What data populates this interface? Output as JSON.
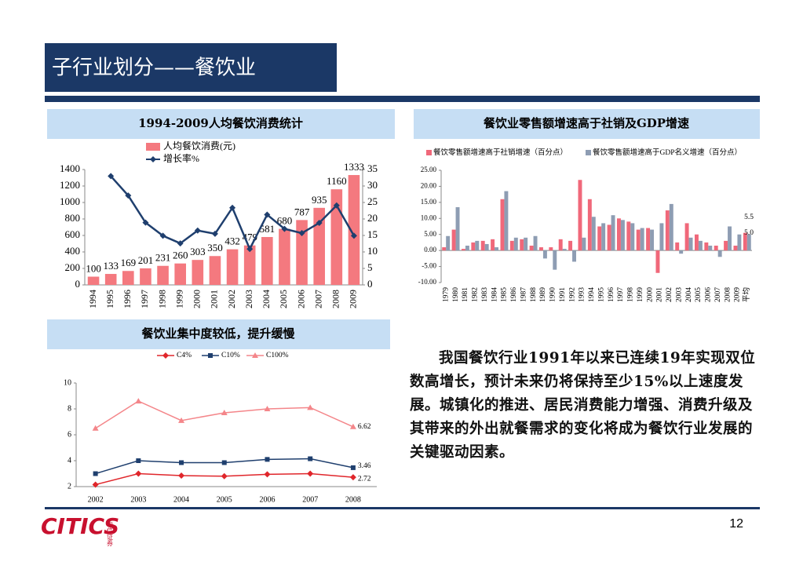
{
  "header": {
    "title": "子行业划分——餐饮业"
  },
  "chart_data": [
    {
      "type": "combo",
      "title": "1994-2009人均餐饮消费统计",
      "categories": [
        "1994",
        "1995",
        "1996",
        "1997",
        "1998",
        "1999",
        "2000",
        "2001",
        "2002",
        "2003",
        "2004",
        "2005",
        "2006",
        "2007",
        "2008",
        "2009"
      ],
      "series": [
        {
          "name": "人均餐饮消费(元)",
          "type": "bar",
          "color": "#f4797f",
          "values": [
            100,
            133,
            169,
            201,
            231,
            260,
            303,
            350,
            432,
            479,
            581,
            680,
            787,
            935,
            1160,
            1333
          ]
        },
        {
          "name": "增长率%",
          "type": "line",
          "axis": "y2",
          "color": "#1f3f6e",
          "values": [
            null,
            33,
            27.1,
            18.9,
            14.9,
            12.6,
            16.5,
            15.5,
            23.4,
            10.9,
            21.3,
            17.0,
            15.7,
            18.8,
            24.1,
            14.9
          ]
        }
      ],
      "ylim": [
        0,
        1400
      ],
      "yticks": [
        0,
        200,
        400,
        600,
        800,
        1000,
        1200,
        1400
      ],
      "y2lim": [
        0,
        35
      ],
      "y2ticks": [
        0,
        5,
        10,
        15,
        20,
        25,
        30,
        35
      ],
      "data_labels": true
    },
    {
      "type": "bar",
      "title": "餐饮业零售额增速高于社销及GDP增速",
      "categories": [
        "1979",
        "1980",
        "1981",
        "1982",
        "1983",
        "1984",
        "1985",
        "1986",
        "1987",
        "1988",
        "1989",
        "1990",
        "1991",
        "1992",
        "1993",
        "1994",
        "1995",
        "1996",
        "1997",
        "1998",
        "1999",
        "2000",
        "2001",
        "2002",
        "2003",
        "2004",
        "2005",
        "2006",
        "2007",
        "2008",
        "2009",
        "平均"
      ],
      "series": [
        {
          "name": "餐饮零售额增速高于社销增速（百分点）",
          "color": "#f0687a",
          "values": [
            1,
            6.5,
            0.5,
            2.5,
            3,
            3.5,
            16,
            3,
            3.5,
            1.5,
            1,
            1,
            3.5,
            3,
            22,
            16,
            7.5,
            8,
            10,
            9,
            6.5,
            7,
            -7,
            12.5,
            2.5,
            8.5,
            5,
            2.5,
            1.5,
            3,
            1.5,
            5.5
          ],
          "value_labels": [
            null,
            null,
            null,
            null,
            null,
            null,
            null,
            null,
            null,
            null,
            null,
            null,
            null,
            null,
            null,
            null,
            null,
            null,
            null,
            null,
            null,
            null,
            null,
            null,
            null,
            null,
            null,
            null,
            null,
            null,
            null,
            "5.5"
          ]
        },
        {
          "name": "餐饮零售额增速高于GDP名义增速（百分点）",
          "color": "#8e9db3",
          "values": [
            4.5,
            13.5,
            1.5,
            3,
            2,
            1,
            18.5,
            4,
            4,
            4.5,
            -2.5,
            -6,
            0.5,
            -3.5,
            4,
            10.5,
            8.5,
            11,
            9.5,
            8.5,
            7,
            6.5,
            8.5,
            14.5,
            -1,
            4,
            3,
            1.5,
            -2,
            7.5,
            5,
            5.0
          ],
          "value_labels": [
            null,
            null,
            null,
            null,
            null,
            null,
            null,
            null,
            null,
            null,
            null,
            null,
            null,
            null,
            null,
            null,
            null,
            null,
            null,
            null,
            null,
            null,
            null,
            null,
            null,
            null,
            null,
            null,
            null,
            null,
            null,
            "5.0"
          ]
        }
      ],
      "ylim": [
        -10,
        25
      ],
      "yticks": [
        {
          "value": -10,
          "label": "-10.00"
        },
        {
          "value": -5,
          "label": "-5.00"
        },
        {
          "value": 0,
          "label": "0.00"
        },
        {
          "value": 5,
          "label": "5.00"
        },
        {
          "value": 10,
          "label": "10.00"
        },
        {
          "value": 15,
          "label": "15.00"
        },
        {
          "value": 20,
          "label": "20.00"
        },
        {
          "value": 25,
          "label": "25.00"
        }
      ]
    },
    {
      "type": "line",
      "title": "餐饮业集中度较低，提升缓慢",
      "categories": [
        "2002",
        "2003",
        "2004",
        "2005",
        "2006",
        "2007",
        "2008"
      ],
      "series": [
        {
          "name": "C4%",
          "color": "#e0262b",
          "marker": "diamond",
          "values": [
            2.15,
            3.0,
            2.85,
            2.8,
            2.95,
            3.0,
            2.72
          ]
        },
        {
          "name": "C10%",
          "color": "#1f3f6e",
          "marker": "square",
          "values": [
            3.0,
            4.0,
            3.85,
            3.85,
            4.1,
            4.15,
            3.46
          ]
        },
        {
          "name": "C100%",
          "color": "#f4868a",
          "marker": "triangle",
          "values": [
            6.5,
            8.6,
            7.1,
            7.7,
            8.0,
            8.1,
            6.62
          ]
        }
      ],
      "ylim": [
        2,
        10
      ],
      "yticks": [
        2,
        4,
        6,
        8,
        10
      ],
      "last_labels": true
    }
  ],
  "body": {
    "paragraph": "我国餐饮行业1991年以来已连续19年实现双位数高增长，预计未来仍将保持至少15%以上速度发展。城镇化的推进、居民消费能力增强、消费升级及其带来的外出就餐需求的变化将成为餐饮行业发展的关键驱动因素。"
  },
  "footer": {
    "logo": "CITICS",
    "logo_cn": "中信证券",
    "page": "12"
  }
}
